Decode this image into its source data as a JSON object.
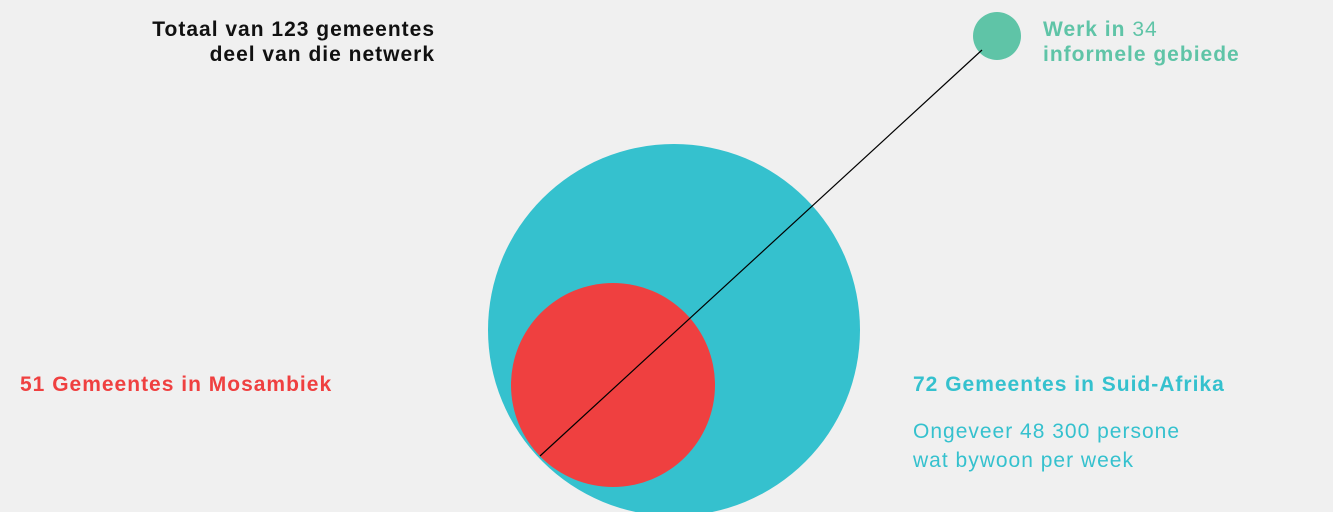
{
  "colors": {
    "background": "#f0f0f0",
    "south_africa": "#35c1ce",
    "mozambique": "#ef4040",
    "informal": "#5fc4a7",
    "text_dark": "#111111",
    "connector": "#000000"
  },
  "total": {
    "line1": "Totaal van 123 gemeentes",
    "line2": "deel van die netwerk"
  },
  "informal": {
    "prefix": "Werk in",
    "count": "34",
    "line2": "informele gebiede"
  },
  "mozambique": {
    "label": "51 Gemeentes in Mosambiek"
  },
  "south_africa": {
    "label": "72 Gemeentes in Suid-Afrika",
    "attendance_line1": "Ongeveer 48 300 persone",
    "attendance_line2": "wat bywoon per week"
  }
}
